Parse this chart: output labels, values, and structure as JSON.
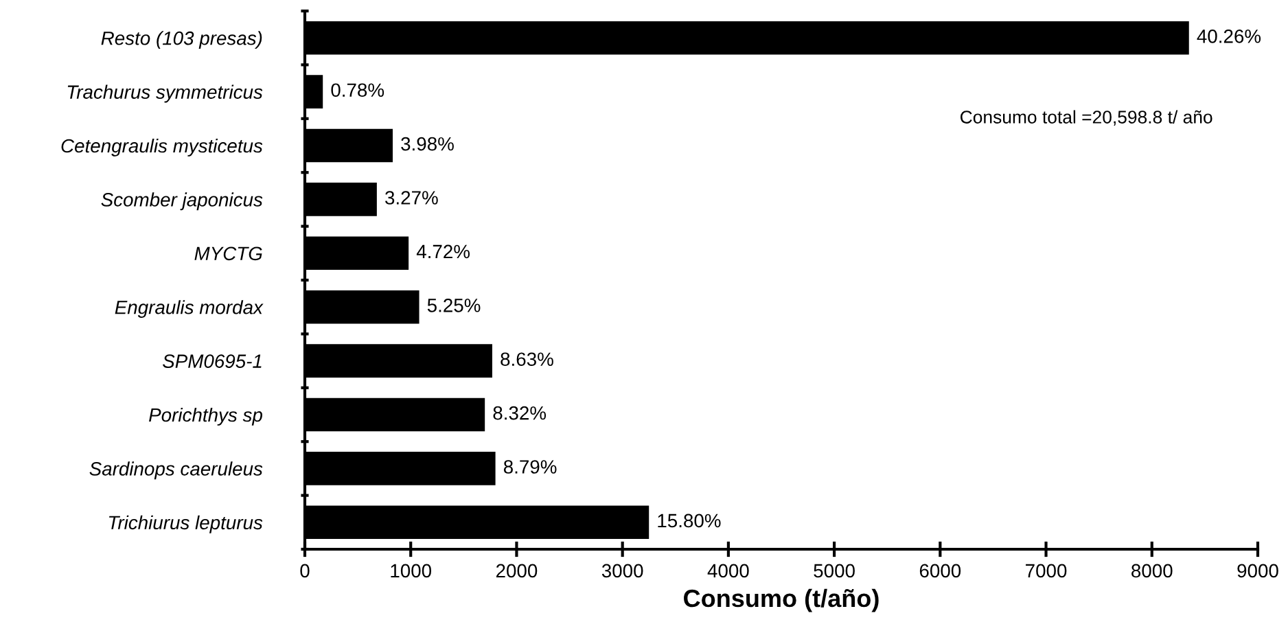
{
  "chart_data": {
    "type": "bar",
    "orientation": "horizontal",
    "xlabel": "Consumo (t/año)",
    "categories": [
      "Resto (103 presas)",
      "Trachurus symmetricus",
      "Cetengraulis mysticetus",
      "Scomber japonicus",
      "MYCTG",
      "Engraulis mordax",
      "SPM0695-1",
      "Porichthys sp",
      "Sardinops caeruleus",
      "Trichiurus lepturus"
    ],
    "values": [
      8350,
      170,
      830,
      680,
      980,
      1080,
      1770,
      1700,
      1800,
      3250
    ],
    "color": "#000000",
    "xlim": [
      0,
      9000
    ],
    "xticks": [
      0,
      1000,
      2000,
      3000,
      4000,
      5000,
      6000,
      7000,
      8000,
      9000
    ],
    "annotations": [
      {
        "text": "40.26%",
        "x": 8350,
        "y": "Resto (103 presas)"
      },
      {
        "text": "0.78%",
        "x": 170,
        "y": "Trachurus symmetricus"
      },
      {
        "text": "3.98%",
        "x": 830,
        "y": "Cetengraulis mysticetus"
      },
      {
        "text": "3.27%",
        "x": 680,
        "y": "Scomber japonicus"
      },
      {
        "text": "4.72%",
        "x": 980,
        "y": "MYCTG"
      },
      {
        "text": "5.25%",
        "x": 1080,
        "y": "Engraulis mordax"
      },
      {
        "text": "8.63%",
        "x": 1770,
        "y": "SPM0695-1"
      },
      {
        "text": "8.32%",
        "x": 1700,
        "y": "Porichthys sp"
      },
      {
        "text": "8.79%",
        "x": 1800,
        "y": "Sardinops caeruleus"
      },
      {
        "text": "15.80%",
        "x": 3250,
        "y": "Trichiurus lepturus"
      },
      "Consumo total =20,598.8 t/ año"
    ],
    "grid": false,
    "legend": false
  }
}
